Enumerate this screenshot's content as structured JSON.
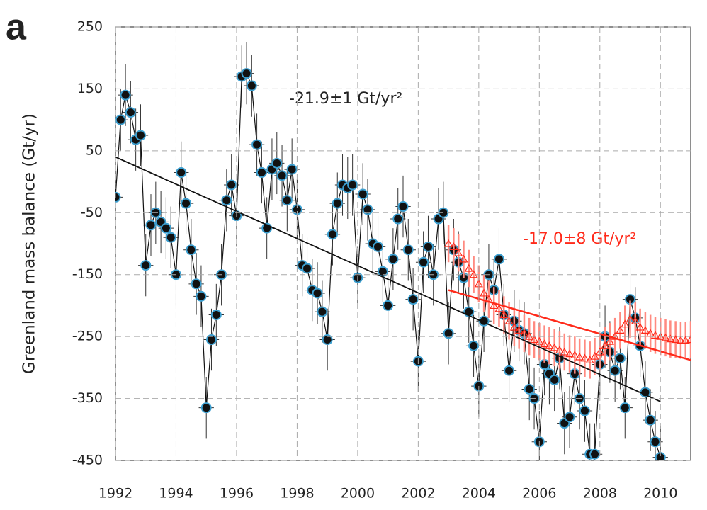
{
  "chart_data": {
    "type": "scatter",
    "panel_label": "a",
    "y_label": "Greenland mass balance (Gt/yr)",
    "xlim": [
      1992,
      2011
    ],
    "ylim": [
      -450,
      250
    ],
    "xticks": [
      1992,
      1994,
      1996,
      1998,
      2000,
      2002,
      2004,
      2006,
      2008,
      2010
    ],
    "yticks": [
      -450,
      -350,
      -250,
      -150,
      -50,
      50,
      150,
      250
    ],
    "grid": true,
    "annotations": [
      {
        "text": "-21.9±1 Gt/yr²",
        "color": "#222222"
      },
      {
        "text": "-17.0±8 Gt/yr²",
        "color": "#ff2a1a"
      }
    ],
    "series": [
      {
        "color": "#111111",
        "edge_color": "#3c9fd0",
        "marker": "circle",
        "connect": true,
        "yerr": 50,
        "xerr": 0.25,
        "x": [
          1992.0,
          1992.17,
          1992.33,
          1992.5,
          1992.67,
          1992.83,
          1993.0,
          1993.17,
          1993.33,
          1993.5,
          1993.67,
          1993.83,
          1994.0,
          1994.17,
          1994.33,
          1994.5,
          1994.67,
          1994.83,
          1995.0,
          1995.17,
          1995.33,
          1995.5,
          1995.67,
          1995.83,
          1996.0,
          1996.17,
          1996.33,
          1996.5,
          1996.67,
          1996.83,
          1997.0,
          1997.17,
          1997.33,
          1997.5,
          1997.67,
          1997.83,
          1998.0,
          1998.17,
          1998.33,
          1998.5,
          1998.67,
          1998.83,
          1999.0,
          1999.17,
          1999.33,
          1999.5,
          1999.67,
          1999.83,
          2000.0,
          2000.17,
          2000.33,
          2000.5,
          2000.67,
          2000.83,
          2001.0,
          2001.17,
          2001.33,
          2001.5,
          2001.67,
          2001.83,
          2002.0,
          2002.17,
          2002.33,
          2002.5,
          2002.67,
          2002.83,
          2003.0,
          2003.17,
          2003.33,
          2003.5,
          2003.67,
          2003.83,
          2004.0,
          2004.17,
          2004.33,
          2004.5,
          2004.67,
          2004.83,
          2005.0,
          2005.17,
          2005.33,
          2005.5,
          2005.67,
          2005.83,
          2006.0,
          2006.17,
          2006.33,
          2006.5,
          2006.67,
          2006.83,
          2007.0,
          2007.17,
          2007.33,
          2007.5,
          2007.67,
          2007.83,
          2008.0,
          2008.17,
          2008.33,
          2008.5,
          2008.67,
          2008.83,
          2009.0,
          2009.17,
          2009.33,
          2009.5,
          2009.67,
          2009.83,
          2010.0
        ],
        "values": [
          -25,
          100,
          140,
          112,
          68,
          75,
          -135,
          -70,
          -50,
          -65,
          -75,
          -90,
          -150,
          15,
          -35,
          -110,
          -165,
          -185,
          -365,
          -255,
          -215,
          -150,
          -30,
          -5,
          -55,
          170,
          175,
          155,
          60,
          15,
          -75,
          20,
          30,
          10,
          -30,
          20,
          -45,
          -135,
          -140,
          -175,
          -180,
          -210,
          -255,
          -85,
          -35,
          -5,
          -10,
          -5,
          -155,
          -20,
          -45,
          -100,
          -105,
          -145,
          -200,
          -125,
          -60,
          -40,
          -110,
          -190,
          -290,
          -130,
          -105,
          -150,
          -60,
          -50,
          -245,
          -110,
          -130,
          -155,
          -210,
          -265,
          -330,
          -225,
          -150,
          -175,
          -125,
          -215,
          -305,
          -225,
          -240,
          -245,
          -335,
          -350,
          -420,
          -295,
          -310,
          -320,
          -285,
          -390,
          -380,
          -310,
          -350,
          -370,
          -440,
          -440,
          -295,
          -250,
          -275,
          -305,
          -285,
          -365,
          -190,
          -220,
          -265,
          -340,
          -385,
          -420,
          -445
        ]
      },
      {
        "color": "#ff2a1a",
        "edge_color": "#ff2a1a",
        "marker": "triangle",
        "connect": false,
        "yerr": 30,
        "xerr": 0,
        "x": [
          2003.0,
          2003.17,
          2003.33,
          2003.5,
          2003.67,
          2003.83,
          2004.0,
          2004.17,
          2004.33,
          2004.5,
          2004.67,
          2004.83,
          2005.0,
          2005.17,
          2005.33,
          2005.5,
          2005.67,
          2005.83,
          2006.0,
          2006.17,
          2006.33,
          2006.5,
          2006.67,
          2006.83,
          2007.0,
          2007.17,
          2007.33,
          2007.5,
          2007.67,
          2007.83,
          2008.0,
          2008.17,
          2008.33,
          2008.5,
          2008.67,
          2008.83,
          2009.0,
          2009.17,
          2009.33,
          2009.5,
          2009.67,
          2009.83,
          2010.0,
          2010.17,
          2010.33,
          2010.5,
          2010.67,
          2010.83,
          2011.0
        ],
        "values": [
          -100,
          -105,
          -115,
          -125,
          -140,
          -150,
          -165,
          -180,
          -190,
          -200,
          -205,
          -215,
          -225,
          -235,
          -240,
          -245,
          -250,
          -255,
          -258,
          -262,
          -265,
          -268,
          -272,
          -275,
          -278,
          -280,
          -283,
          -285,
          -288,
          -282,
          -275,
          -265,
          -258,
          -250,
          -240,
          -230,
          -222,
          -225,
          -235,
          -240,
          -245,
          -248,
          -250,
          -252,
          -254,
          -255,
          -256,
          -256,
          -255
        ]
      }
    ],
    "trend_lines": [
      {
        "color": "#111111",
        "x": [
          1992,
          2010
        ],
        "values": [
          40,
          -355
        ]
      },
      {
        "color": "#ff2a1a",
        "x": [
          2003,
          2011
        ],
        "values": [
          -175,
          -288
        ]
      }
    ]
  }
}
